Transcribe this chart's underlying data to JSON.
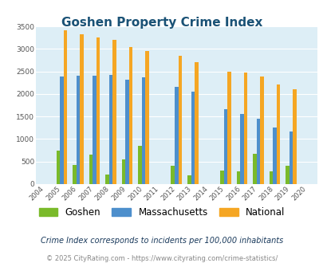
{
  "title": "Goshen Property Crime Index",
  "years": [
    2004,
    2005,
    2006,
    2007,
    2008,
    2009,
    2010,
    2011,
    2012,
    2013,
    2014,
    2015,
    2016,
    2017,
    2018,
    2019,
    2020
  ],
  "goshen": [
    0,
    750,
    430,
    650,
    220,
    540,
    840,
    0,
    400,
    200,
    0,
    300,
    290,
    670,
    290,
    410,
    0
  ],
  "massachusetts": [
    0,
    2380,
    2400,
    2400,
    2430,
    2310,
    2360,
    0,
    2160,
    2050,
    0,
    1670,
    1550,
    1450,
    1260,
    1170,
    0
  ],
  "national": [
    0,
    3420,
    3330,
    3250,
    3200,
    3040,
    2950,
    0,
    2850,
    2700,
    0,
    2500,
    2470,
    2380,
    2210,
    2100,
    0
  ],
  "goshen_color": "#7aba2a",
  "mass_color": "#4d8fcc",
  "national_color": "#f5a623",
  "bg_color": "#ddeef6",
  "ylim": [
    0,
    3500
  ],
  "yticks": [
    0,
    500,
    1000,
    1500,
    2000,
    2500,
    3000,
    3500
  ],
  "subtitle": "Crime Index corresponds to incidents per 100,000 inhabitants",
  "footer": "© 2025 CityRating.com - https://www.cityrating.com/crime-statistics/",
  "bar_width": 0.22,
  "title_color": "#1a5276",
  "subtitle_color": "#1a3a5c",
  "footer_color": "#888888"
}
